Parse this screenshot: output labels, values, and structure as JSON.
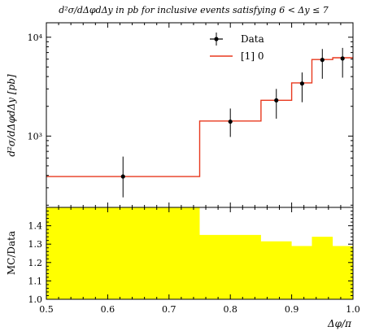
{
  "chart_data": [
    {
      "type": "line",
      "title": "d²σ/dΔφdΔy in pb for inclusive events satisfying 6 < Δy ≤ 7",
      "ylabel": "d²σ/dΔφdΔy [pb]",
      "yscale": "log",
      "ylim": [
        190,
        14000
      ],
      "xlim": [
        0.5,
        1.0
      ],
      "yticks": [
        1000,
        10000
      ],
      "ytick_labels": [
        "10³",
        "10⁴"
      ],
      "legend_position": "top-right",
      "series": [
        {
          "name": "Data",
          "style": "points-with-errorbars",
          "color": "#000000",
          "x": [
            0.625,
            0.8,
            0.875,
            0.917,
            0.95,
            0.983
          ],
          "y": [
            390,
            1400,
            2300,
            3400,
            5900,
            6100
          ],
          "yerr_low": [
            240,
            980,
            1500,
            2200,
            3800,
            3900
          ],
          "yerr_high": [
            620,
            1900,
            3000,
            4400,
            7600,
            7800
          ]
        },
        {
          "name": "[1] 0",
          "style": "step",
          "color": "#e8391e",
          "bin_edges": [
            0.5,
            0.75,
            0.85,
            0.9,
            0.933,
            0.967,
            1.0
          ],
          "values": [
            390,
            1420,
            2300,
            3450,
            5950,
            6200
          ]
        }
      ]
    },
    {
      "type": "area",
      "ylabel": "MC/Data",
      "xlabel": "Δφ/π",
      "xlim": [
        0.5,
        1.0
      ],
      "ylim": [
        1.0,
        1.5
      ],
      "xticks": [
        0.5,
        0.6,
        0.7,
        0.8,
        0.9,
        1.0
      ],
      "xtick_labels": [
        "0.5",
        "0.6",
        "0.7",
        "0.8",
        "0.9",
        "1.0"
      ],
      "yticks": [
        1.0,
        1.1,
        1.2,
        1.3,
        1.4
      ],
      "ytick_labels": [
        "1.0",
        "1.1",
        "1.2",
        "1.3",
        "1.4"
      ],
      "fill_color": "#ffff00",
      "bin_edges": [
        0.5,
        0.75,
        0.85,
        0.9,
        0.933,
        0.967,
        1.0
      ],
      "values": [
        1.5,
        1.35,
        1.315,
        1.29,
        1.34,
        1.29
      ]
    }
  ]
}
